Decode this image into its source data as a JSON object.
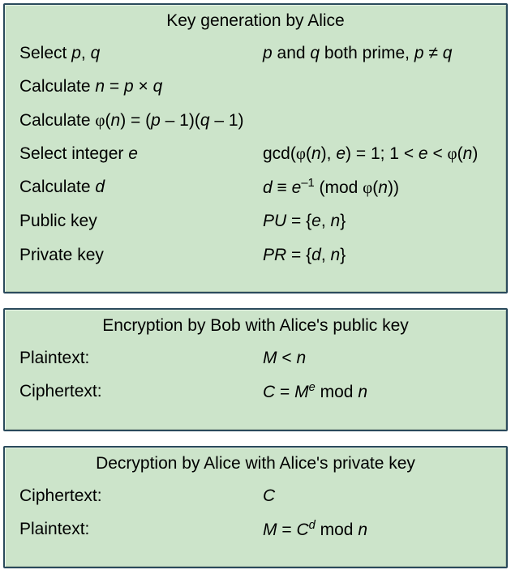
{
  "keygen": {
    "title": "Key generation by Alice",
    "rows": [
      {
        "left": "Select <span class='it'>p</span>, <span class='it'>q</span>",
        "right": "<span class='it'>p</span> and <span class='it'>q</span> both prime, <span class='it'>p</span> &ne; <span class='it'>q</span>"
      },
      {
        "left": "Calculate <span class='it'>n</span> = <span class='it'>p</span> &times; <span class='it'>q</span>",
        "right": ""
      },
      {
        "left": "Calculate <span class='phi'>&phi;</span>(<span class='it'>n</span>) = (<span class='it'>p</span> &ndash; 1)(<span class='it'>q</span> &ndash; 1)",
        "right": ""
      },
      {
        "left": "Select integer <span class='it'>e</span>",
        "right": "gcd(<span class='phi'>&phi;</span>(<span class='it'>n</span>), <span class='it'>e</span>) = 1; 1 &lt; <span class='it'>e</span> &lt; <span class='phi'>&phi;</span>(<span class='it'>n</span>)"
      },
      {
        "left": "Calculate <span class='it'>d</span>",
        "right": "<span class='it'>d</span> &equiv; <span class='it'>e</span><sup>&ndash;1</sup> (mod <span class='phi'>&phi;</span>(<span class='it'>n</span>))"
      },
      {
        "left": "Public key",
        "right": "<span class='it'>PU</span> = {<span class='it'>e</span>, <span class='it'>n</span>}"
      },
      {
        "left": "Private key",
        "right": "<span class='it'>PR</span> = {<span class='it'>d</span>, <span class='it'>n</span>}"
      }
    ]
  },
  "encryption": {
    "title": "Encryption by Bob with Alice's public key",
    "rows": [
      {
        "left": "Plaintext:",
        "right": "<span class='it'>M</span> &lt; <span class='it'>n</span>"
      },
      {
        "left": "Ciphertext:",
        "right": "<span class='it'>C</span> = <span class='it'>M<sup>e</sup></span> mod <span class='it'>n</span>"
      }
    ]
  },
  "decryption": {
    "title": "Decryption by Alice with Alice's private key",
    "rows": [
      {
        "left": "Ciphertext:",
        "right": "<span class='it'>C</span>"
      },
      {
        "left": "Plaintext:",
        "right": "<span class='it'>M</span> = <span class='it'>C<sup>d</sup></span> mod <span class='it'>n</span>"
      }
    ]
  },
  "style": {
    "panel_bg": "#cce4ca",
    "panel_border": "#2a4a5c",
    "font_size_title": 21,
    "font_size_body": 21,
    "left_col_width": 300,
    "panel_gap": 18
  }
}
